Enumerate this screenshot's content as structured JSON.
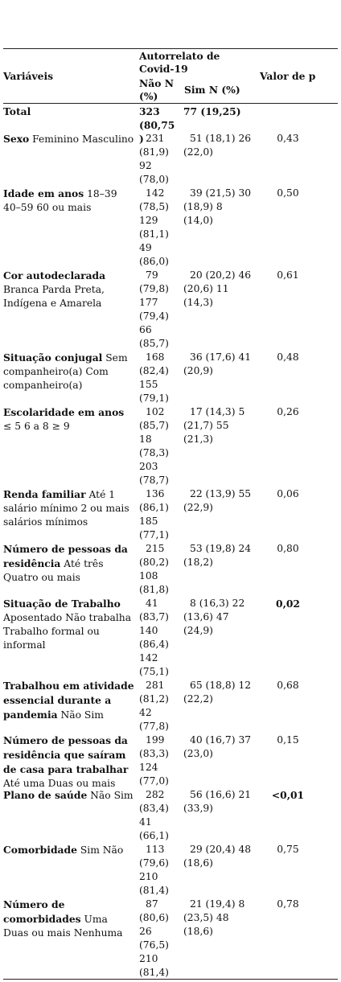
{
  "header": {
    "variaveis": "Variáveis",
    "group_title": "Autorrelato de Covid-19",
    "col_nao": "Não N (%)",
    "col_sim": "Sim N (%)",
    "valor_p": "Valor de p"
  },
  "rows": [
    {
      "label_bold": "Total",
      "label_rest": "",
      "nao": "323 (80,75)",
      "sim": "77 (19,25)",
      "p": "",
      "bold_values": true
    },
    {
      "label_bold": "Sexo",
      "label_rest": " Feminino Masculino",
      "nao": "231 (81,9) 92 (78,0)",
      "sim": "51 (18,1) 26 (22,0)",
      "p": "0,43"
    },
    {
      "label_bold": "Idade em anos",
      "label_rest": " 18–39 40–59 60 ou mais",
      "nao": "142 (78,5) 129 (81,1) 49 (86,0)",
      "sim": "39 (21,5) 30 (18,9) 8 (14,0)",
      "p": "0,50"
    },
    {
      "label_bold": "Cor autodeclarada",
      "label_rest": " Branca Parda Preta, Indígena e Amarela",
      "nao": "79 (79,8) 177 (79,4) 66 (85,7)",
      "sim": "20 (20,2) 46 (20,6) 11 (14,3)",
      "p": "0,61"
    },
    {
      "label_bold": "Situação conjugal",
      "label_rest": " Sem companheiro(a) Com companheiro(a)",
      "nao": "168 (82,4) 155 (79,1)",
      "sim": "36 (17,6) 41 (20,9)",
      "p": "0,48"
    },
    {
      "label_bold": "Escolaridade em anos",
      "label_rest": " ≤ 5 6 a 8 ≥ 9",
      "nao": "102 (85,7) 18 (78,3) 203 (78,7)",
      "sim": "17 (14,3) 5 (21,7) 55 (21,3)",
      "p": "0,26"
    },
    {
      "label_bold": "Renda familiar",
      "label_rest": " Até 1 salário mínimo 2 ou mais salários mínimos",
      "nao": "136 (86,1) 185 (77,1)",
      "sim": "22 (13,9) 55 (22,9)",
      "p": "0,06"
    },
    {
      "label_bold": "Número de pessoas da residência",
      "label_rest": " Até três Quatro ou mais",
      "nao": "215 (80,2) 108 (81,8)",
      "sim": "53 (19,8) 24 (18,2)",
      "p": "0,80"
    },
    {
      "label_bold": "Situação de Trabalho",
      "label_rest": " Aposentado Não trabalha Trabalho formal ou informal",
      "nao": "41 (83,7) 140 (86,4) 142 (75,1)",
      "sim": "8 (16,3) 22 (13,6) 47 (24,9)",
      "p": "0,02",
      "p_bold": true
    },
    {
      "label_bold": "Trabalhou em atividade essencial durante a pandemia",
      "label_rest": " Não Sim",
      "nao": "281 (81,2) 42 (77,8)",
      "sim": "65 (18,8) 12 (22,2)",
      "p": "0,68"
    },
    {
      "label_bold": "Número de pessoas da residência que saíram de casa para trabalhar",
      "label_rest": " Até uma Duas ou mais",
      "nao": "199 (83,3) 124 (77,0)",
      "sim": "40 (16,7) 37 (23,0)",
      "p": "0,15"
    },
    {
      "label_bold": "Plano de saúde",
      "label_rest": " Não Sim",
      "nao": "282 (83,4) 41 (66,1)",
      "sim": "56 (16,6) 21 (33,9)",
      "p": "<0,01",
      "p_bold": true
    },
    {
      "label_bold": "Comorbidade",
      "label_rest": " Sim Não",
      "nao": "113 (79,6) 210 (81,4)",
      "sim": "29 (20,4) 48 (18,6)",
      "p": "0,75"
    },
    {
      "label_bold": "Número de comorbidades",
      "label_rest": " Uma Duas ou mais Nenhuma",
      "nao": "87 (80,6) 26 (76,5) 210 (81,4)",
      "sim": "21 (19,4) 8 (23,5) 48 (18,6)",
      "p": "0,78"
    }
  ]
}
